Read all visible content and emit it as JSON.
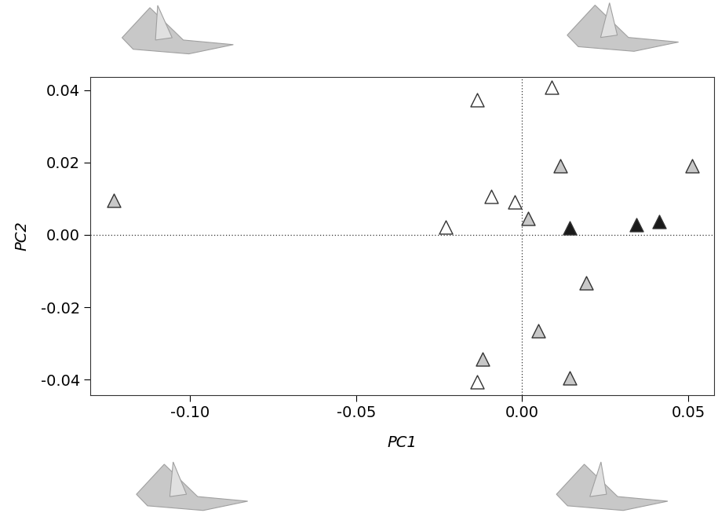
{
  "chart_data": {
    "type": "scatter",
    "x_label": "PC1",
    "y_label": "PC2",
    "marker": "triangle",
    "series": [
      {
        "color": "#ffffff",
        "x": [
          -0.0136,
          0.0089,
          -0.0092,
          -0.0021,
          -0.023,
          -0.0136
        ],
        "y": [
          0.0374,
          0.0409,
          0.0107,
          0.0091,
          0.0022,
          -0.0407
        ]
      },
      {
        "color": "#c8c8c8",
        "x": [
          -0.123,
          0.0115,
          0.0512,
          0.0019,
          0.0192,
          0.0049,
          -0.012,
          0.0143
        ],
        "y": [
          0.0096,
          0.0191,
          0.0191,
          0.0046,
          -0.0133,
          -0.0265,
          -0.0343,
          -0.0396
        ]
      },
      {
        "color": "#1a1a1a",
        "x": [
          0.0143,
          0.0345,
          0.0413
        ],
        "y": [
          0.002,
          0.0028,
          0.0037
        ]
      }
    ],
    "xlim": [
      -0.13,
      0.0577
    ],
    "ylim": [
      -0.0443,
      0.0437
    ],
    "xticks": [
      {
        "value": -0.1,
        "label": "-0.10"
      },
      {
        "value": -0.05,
        "label": "-0.05"
      },
      {
        "value": 0.0,
        "label": "0.00"
      },
      {
        "value": 0.05,
        "label": "0.05"
      }
    ],
    "yticks": [
      {
        "value": -0.04,
        "label": "-0.04"
      },
      {
        "value": -0.02,
        "label": "-0.02"
      },
      {
        "value": 0.0,
        "label": "0.00"
      },
      {
        "value": 0.02,
        "label": "0.02"
      },
      {
        "value": 0.04,
        "label": "0.04"
      }
    ],
    "grid": false
  }
}
